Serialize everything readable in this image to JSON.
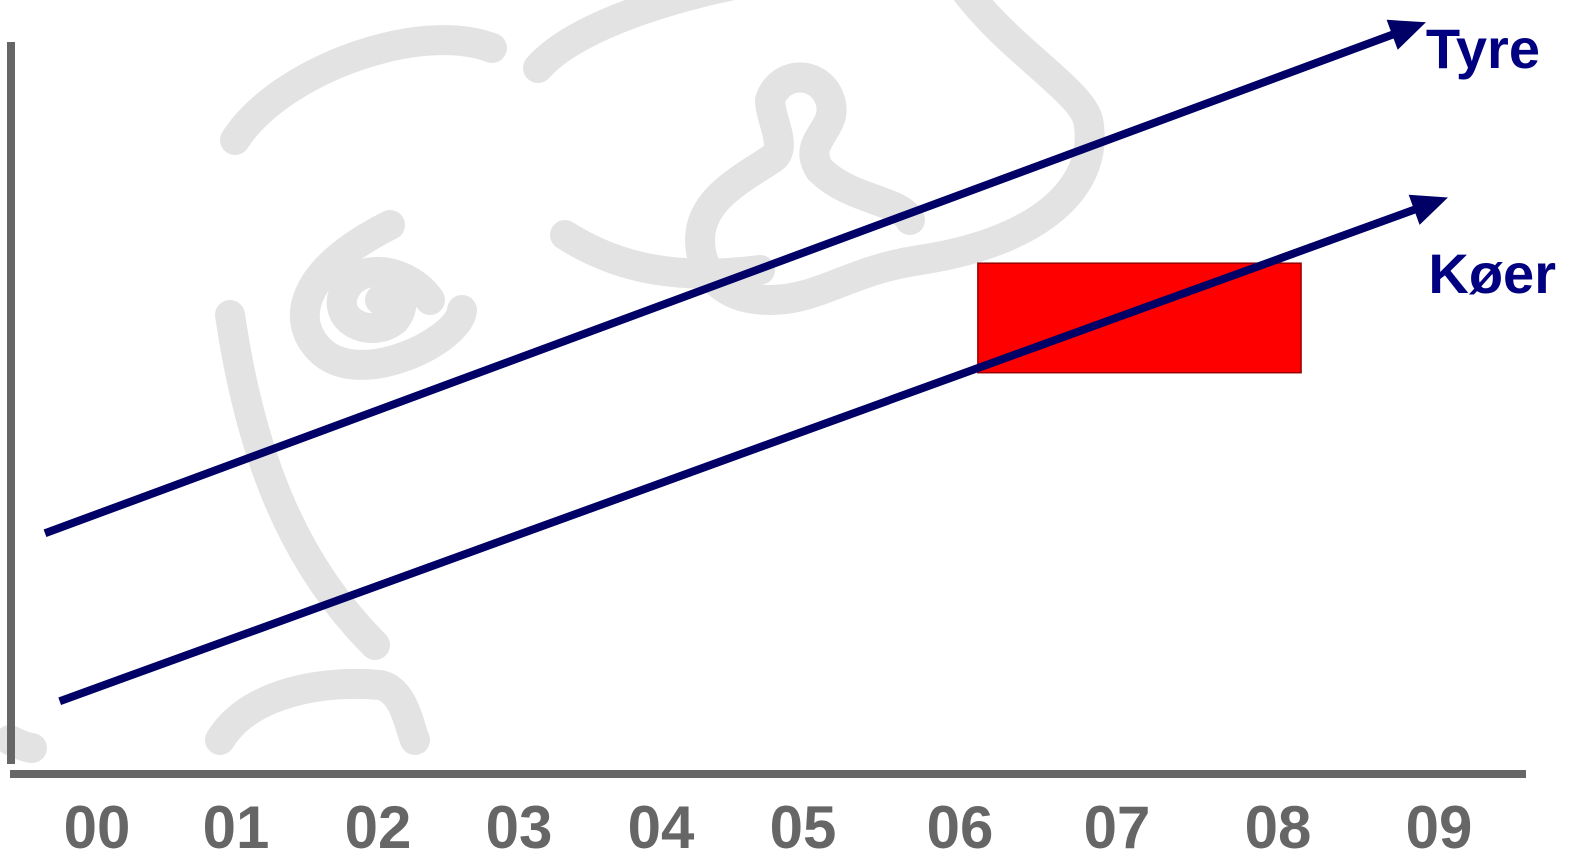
{
  "chart_data": {
    "type": "line",
    "title": "",
    "xlabel": "",
    "ylabel": "",
    "x": [
      "00",
      "01",
      "02",
      "03",
      "04",
      "05",
      "06",
      "07",
      "08",
      "09"
    ],
    "xlim": [
      -0.35,
      9.35
    ],
    "ylim": [
      0,
      10
    ],
    "grid": false,
    "legend": "none",
    "series": [
      {
        "name": "Tyre",
        "color": "#000066",
        "label_color": "#000080",
        "points": [
          [
            -0.35,
            2.9
          ],
          [
            9.05,
            9.9
          ]
        ]
      },
      {
        "name": "Køer",
        "color": "#000066",
        "label_color": "#000080",
        "points": [
          [
            -0.25,
            0.6
          ],
          [
            9.2,
            7.5
          ]
        ]
      }
    ],
    "highlight_box": {
      "x_range": [
        6.0,
        8.2
      ],
      "y_range": [
        5.1,
        6.6
      ],
      "color": "#ff0000"
    },
    "axis_color": "#666666",
    "tick_color": "#666666",
    "watermark": "decorative-swirl-face"
  }
}
